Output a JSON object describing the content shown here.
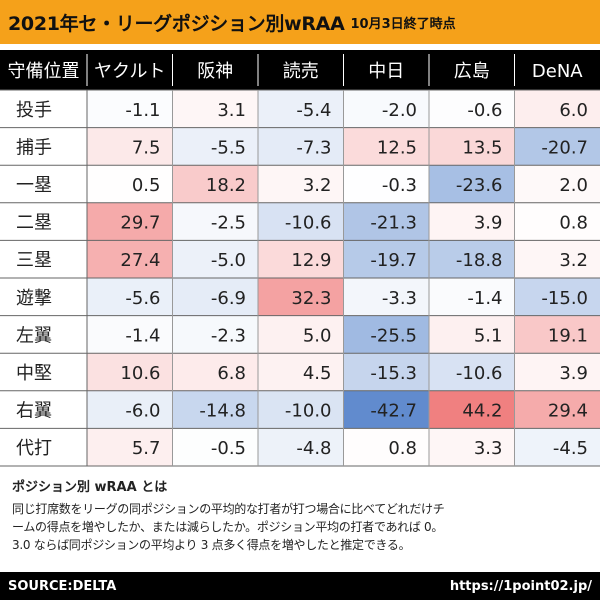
{
  "header": {
    "title": "2021年セ・リーグポジション別wRAA",
    "date": "10月3日終了時点"
  },
  "colors": {
    "header_bg": "#f5a11a",
    "header_row_bg": "#000000",
    "positive": "#f08080",
    "negative": "#5b87cc",
    "neutral": "#ffffff"
  },
  "chart_data": {
    "type": "table",
    "title": "2021年セ・リーグポジション別wRAA",
    "corner_label": "守備位置",
    "columns": [
      "ヤクルト",
      "阪神",
      "読売",
      "中日",
      "広島",
      "DeNA"
    ],
    "rows": [
      {
        "label": "投手",
        "values": [
          "-1.1",
          "3.1",
          "-5.4",
          "-2.0",
          "-0.6",
          "6.0"
        ]
      },
      {
        "label": "捕手",
        "values": [
          "7.5",
          "-5.5",
          "-7.3",
          "12.5",
          "13.5",
          "-20.7"
        ]
      },
      {
        "label": "一塁",
        "values": [
          "0.5",
          "18.2",
          "3.2",
          "-0.3",
          "-23.6",
          "2.0"
        ]
      },
      {
        "label": "二塁",
        "values": [
          "29.7",
          "-2.5",
          "-10.6",
          "-21.3",
          "3.9",
          "0.8"
        ]
      },
      {
        "label": "三塁",
        "values": [
          "27.4",
          "-5.0",
          "12.9",
          "-19.7",
          "-18.8",
          "3.2"
        ]
      },
      {
        "label": "遊撃",
        "values": [
          "-5.6",
          "-6.9",
          "32.3",
          "-3.3",
          "-1.4",
          "-15.0"
        ]
      },
      {
        "label": "左翼",
        "values": [
          "-1.4",
          "-2.3",
          "5.0",
          "-25.5",
          "5.1",
          "19.1"
        ]
      },
      {
        "label": "中堅",
        "values": [
          "10.6",
          "6.8",
          "4.5",
          "-15.3",
          "-10.6",
          "3.9"
        ]
      },
      {
        "label": "右翼",
        "values": [
          "-6.0",
          "-14.8",
          "-10.0",
          "-42.7",
          "44.2",
          "29.4"
        ]
      },
      {
        "label": "代打",
        "values": [
          "5.7",
          "-0.5",
          "-4.8",
          "0.8",
          "3.3",
          "-4.5"
        ]
      }
    ]
  },
  "note": {
    "title": "ポジション別 wRAA とは",
    "line1": "同じ打席数をリーグの同ポジションの平均的な打者が打つ場合に比べてどれだけチ",
    "line2": "ームの得点を増やしたか、または減らしたか。ポジション平均の打者であれば 0。",
    "line3": "3.0 ならば同ポジションの平均より 3 点多く得点を増やしたと推定できる。"
  },
  "footer": {
    "source": "SOURCE:DELTA",
    "site": "https://1point02.jp/"
  }
}
